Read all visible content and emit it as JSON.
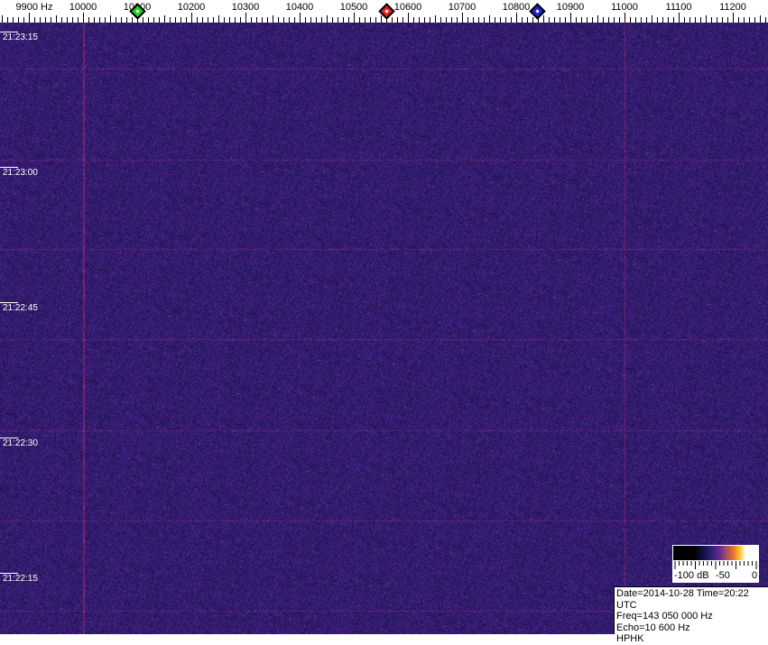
{
  "frequency_axis": {
    "labels": [
      "9900 Hz",
      "10000",
      "10100",
      "10200",
      "10300",
      "10400",
      "10500",
      "10600",
      "10700",
      "10800",
      "10900",
      "11000",
      "11100",
      "11200"
    ],
    "values": [
      9900,
      10000,
      10100,
      10200,
      10300,
      10400,
      10500,
      10600,
      10700,
      10800,
      10900,
      11000,
      11100,
      11200
    ]
  },
  "markers": [
    {
      "name": "green-marker",
      "freq": 10100,
      "color": "#22cc22"
    },
    {
      "name": "red-marker",
      "freq": 10560,
      "color": "#dd2222"
    },
    {
      "name": "blue-marker",
      "freq": 10838,
      "color": "#2222cc"
    }
  ],
  "time_labels": [
    "21:23:15",
    "21:23:00",
    "21:22:45",
    "21:22:30",
    "21:22:15"
  ],
  "color_scale": {
    "labels": [
      "-100 dB",
      "-50",
      "0"
    ]
  },
  "info": {
    "date_time": "Date=2014-10-28 Time=20:22 UTC",
    "freq": "Freq=143 050 000 Hz",
    "echo": "Echo=10 600 Hz",
    "station": "HPHK"
  },
  "colors": {
    "background": "#2c1c6c",
    "grid": "#b03c8c"
  }
}
